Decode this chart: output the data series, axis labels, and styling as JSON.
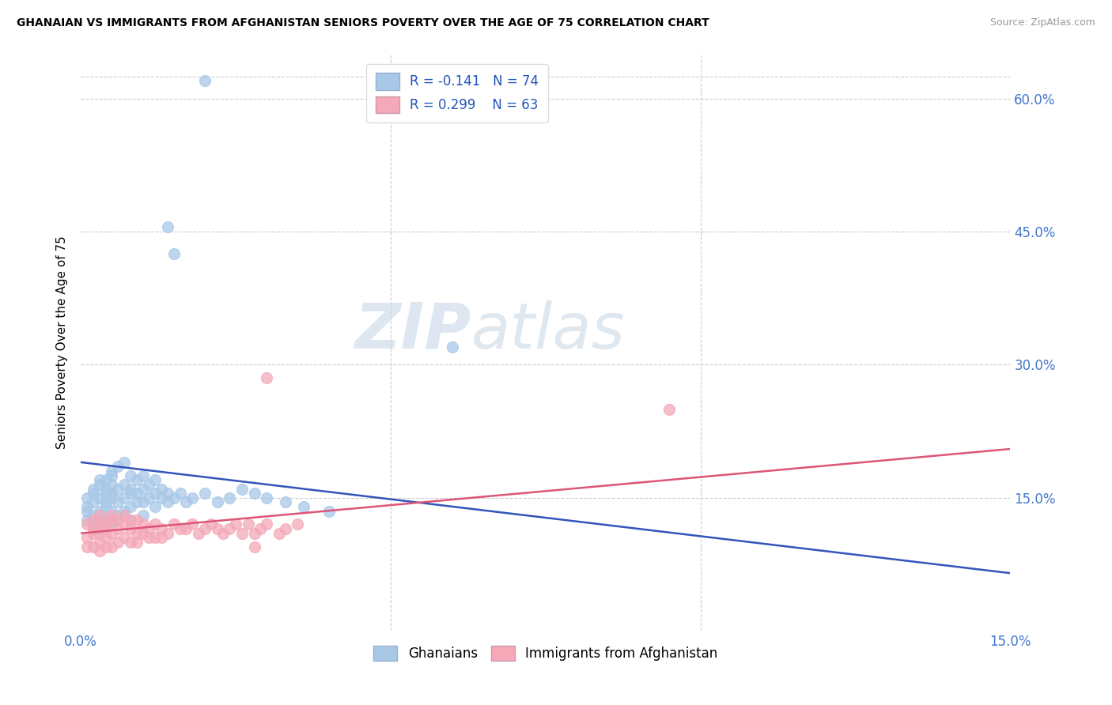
{
  "title": "GHANAIAN VS IMMIGRANTS FROM AFGHANISTAN SENIORS POVERTY OVER THE AGE OF 75 CORRELATION CHART",
  "source": "Source: ZipAtlas.com",
  "ylabel": "Seniors Poverty Over the Age of 75",
  "xlim": [
    0.0,
    0.15
  ],
  "ylim": [
    0.0,
    0.65
  ],
  "ghanaian_color": "#a8c8e8",
  "afghan_color": "#f4a8b8",
  "trend_blue": "#3355bb",
  "trend_pink": "#dd5577",
  "legend_label_blue": "Ghanaians",
  "legend_label_pink": "Immigrants from Afghanistan",
  "watermark_zip": "ZIP",
  "watermark_atlas": "atlas",
  "blue_trend_x": [
    0.0,
    0.15
  ],
  "blue_trend_y": [
    0.19,
    0.065
  ],
  "pink_trend_x": [
    0.0,
    0.15
  ],
  "pink_trend_y": [
    0.11,
    0.205
  ],
  "ghanaian_x": [
    0.001,
    0.001,
    0.001,
    0.001,
    0.002,
    0.002,
    0.002,
    0.002,
    0.002,
    0.003,
    0.003,
    0.003,
    0.003,
    0.003,
    0.003,
    0.004,
    0.004,
    0.004,
    0.004,
    0.004,
    0.004,
    0.005,
    0.005,
    0.005,
    0.005,
    0.005,
    0.005,
    0.005,
    0.006,
    0.006,
    0.006,
    0.006,
    0.007,
    0.007,
    0.007,
    0.007,
    0.008,
    0.008,
    0.008,
    0.008,
    0.008,
    0.009,
    0.009,
    0.009,
    0.01,
    0.01,
    0.01,
    0.01,
    0.011,
    0.011,
    0.012,
    0.012,
    0.012,
    0.013,
    0.013,
    0.014,
    0.014,
    0.015,
    0.016,
    0.017,
    0.018,
    0.02,
    0.022,
    0.024,
    0.026,
    0.028,
    0.03,
    0.033,
    0.036,
    0.04,
    0.014,
    0.015,
    0.06,
    0.02
  ],
  "ghanaian_y": [
    0.135,
    0.15,
    0.125,
    0.14,
    0.155,
    0.13,
    0.16,
    0.12,
    0.145,
    0.165,
    0.135,
    0.15,
    0.125,
    0.17,
    0.115,
    0.16,
    0.14,
    0.155,
    0.125,
    0.145,
    0.17,
    0.18,
    0.155,
    0.165,
    0.135,
    0.15,
    0.12,
    0.175,
    0.185,
    0.16,
    0.145,
    0.13,
    0.19,
    0.165,
    0.15,
    0.135,
    0.175,
    0.155,
    0.14,
    0.16,
    0.125,
    0.17,
    0.155,
    0.145,
    0.175,
    0.16,
    0.145,
    0.13,
    0.165,
    0.15,
    0.17,
    0.155,
    0.14,
    0.16,
    0.15,
    0.155,
    0.145,
    0.15,
    0.155,
    0.145,
    0.15,
    0.155,
    0.145,
    0.15,
    0.16,
    0.155,
    0.15,
    0.145,
    0.14,
    0.135,
    0.455,
    0.425,
    0.32,
    0.62
  ],
  "afghan_x": [
    0.001,
    0.001,
    0.001,
    0.002,
    0.002,
    0.002,
    0.002,
    0.003,
    0.003,
    0.003,
    0.003,
    0.003,
    0.004,
    0.004,
    0.004,
    0.004,
    0.005,
    0.005,
    0.005,
    0.005,
    0.006,
    0.006,
    0.006,
    0.007,
    0.007,
    0.007,
    0.008,
    0.008,
    0.008,
    0.009,
    0.009,
    0.009,
    0.01,
    0.01,
    0.011,
    0.011,
    0.012,
    0.012,
    0.013,
    0.013,
    0.014,
    0.015,
    0.016,
    0.017,
    0.018,
    0.019,
    0.02,
    0.021,
    0.022,
    0.023,
    0.024,
    0.025,
    0.026,
    0.027,
    0.028,
    0.029,
    0.03,
    0.032,
    0.033,
    0.035,
    0.095,
    0.03,
    0.028
  ],
  "afghan_y": [
    0.105,
    0.12,
    0.095,
    0.11,
    0.125,
    0.095,
    0.115,
    0.1,
    0.12,
    0.09,
    0.13,
    0.11,
    0.105,
    0.12,
    0.095,
    0.115,
    0.11,
    0.125,
    0.095,
    0.13,
    0.115,
    0.1,
    0.125,
    0.12,
    0.105,
    0.13,
    0.115,
    0.1,
    0.125,
    0.11,
    0.125,
    0.1,
    0.12,
    0.11,
    0.115,
    0.105,
    0.12,
    0.105,
    0.115,
    0.105,
    0.11,
    0.12,
    0.115,
    0.115,
    0.12,
    0.11,
    0.115,
    0.12,
    0.115,
    0.11,
    0.115,
    0.12,
    0.11,
    0.12,
    0.11,
    0.115,
    0.12,
    0.11,
    0.115,
    0.12,
    0.25,
    0.285,
    0.095
  ]
}
